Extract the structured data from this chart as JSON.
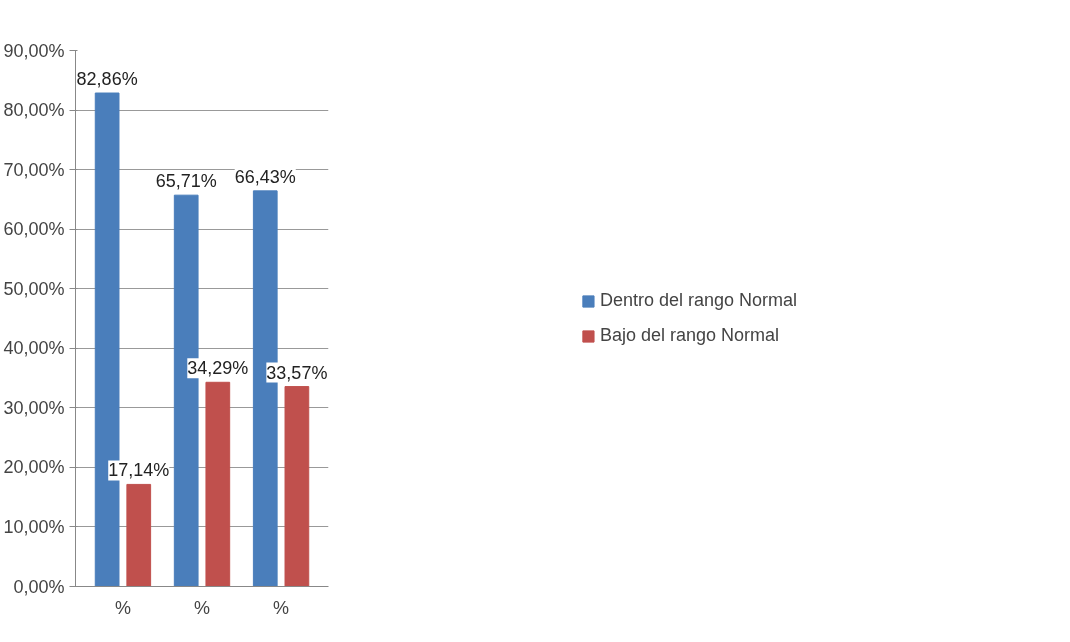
{
  "chart_data": {
    "type": "bar",
    "categories": [
      "%",
      "%",
      "%"
    ],
    "series": [
      {
        "name": "Dentro del rango Normal",
        "color": "#4a7ebb",
        "values": [
          82.86,
          65.71,
          66.43
        ],
        "value_labels": [
          "82,86%",
          "65,71%",
          "66,43%"
        ]
      },
      {
        "name": "Bajo del rango Normal",
        "color": "#c0504d",
        "values": [
          17.14,
          34.29,
          33.57
        ],
        "value_labels": [
          "17,14%",
          "34,29%",
          "33,57%"
        ]
      }
    ],
    "ylim": [
      0,
      90
    ],
    "yticks": [
      {
        "value": 0,
        "label": "0,00%"
      },
      {
        "value": 10,
        "label": "10,00%"
      },
      {
        "value": 20,
        "label": "20,00%"
      },
      {
        "value": 30,
        "label": "30,00%"
      },
      {
        "value": 40,
        "label": "40,00%"
      },
      {
        "value": 50,
        "label": "50,00%"
      },
      {
        "value": 60,
        "label": "60,00%"
      },
      {
        "value": 70,
        "label": "70,00%"
      },
      {
        "value": 80,
        "label": "80,00%"
      },
      {
        "value": 90,
        "label": "90,00%"
      }
    ],
    "grid": "y",
    "legend": "right"
  }
}
